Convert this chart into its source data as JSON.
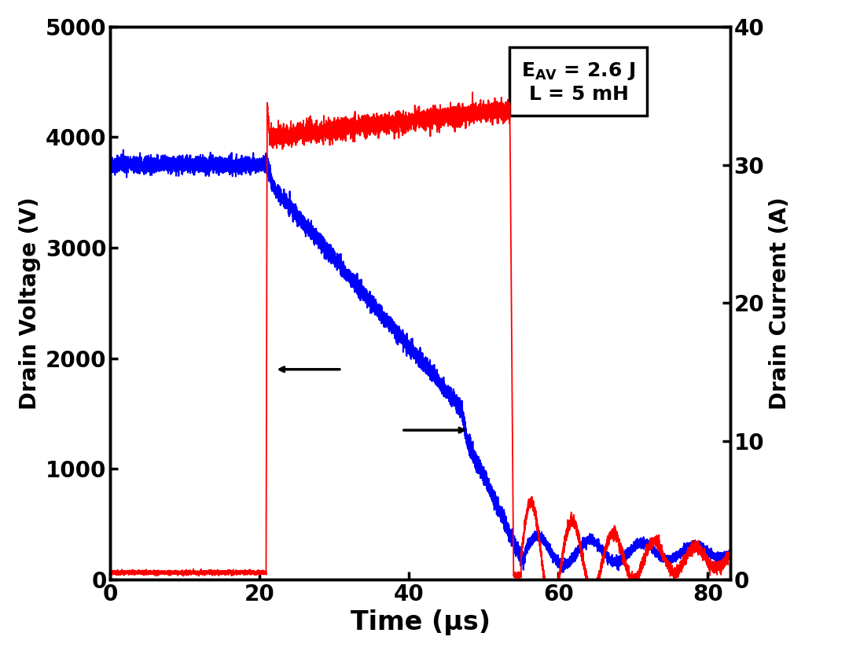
{
  "xlabel": "Time (μs)",
  "ylabel_left": "Drain Voltage (V)",
  "ylabel_right": "Drain Current (A)",
  "xlim": [
    0,
    83
  ],
  "ylim_left": [
    0,
    5000
  ],
  "ylim_right": [
    0,
    40
  ],
  "xticks": [
    0,
    20,
    40,
    60,
    80
  ],
  "yticks_left": [
    0,
    1000,
    2000,
    3000,
    4000,
    5000
  ],
  "yticks_right": [
    0,
    10,
    20,
    30,
    40
  ],
  "blue_color": "#0000FF",
  "red_color": "#FF0000",
  "xlabel_fontsize": 24,
  "ylabel_fontsize": 20,
  "tick_fontsize": 20,
  "annotation_fontsize": 18,
  "linewidth_blue": 1.5,
  "linewidth_red": 1.3,
  "background_color": "#ffffff"
}
